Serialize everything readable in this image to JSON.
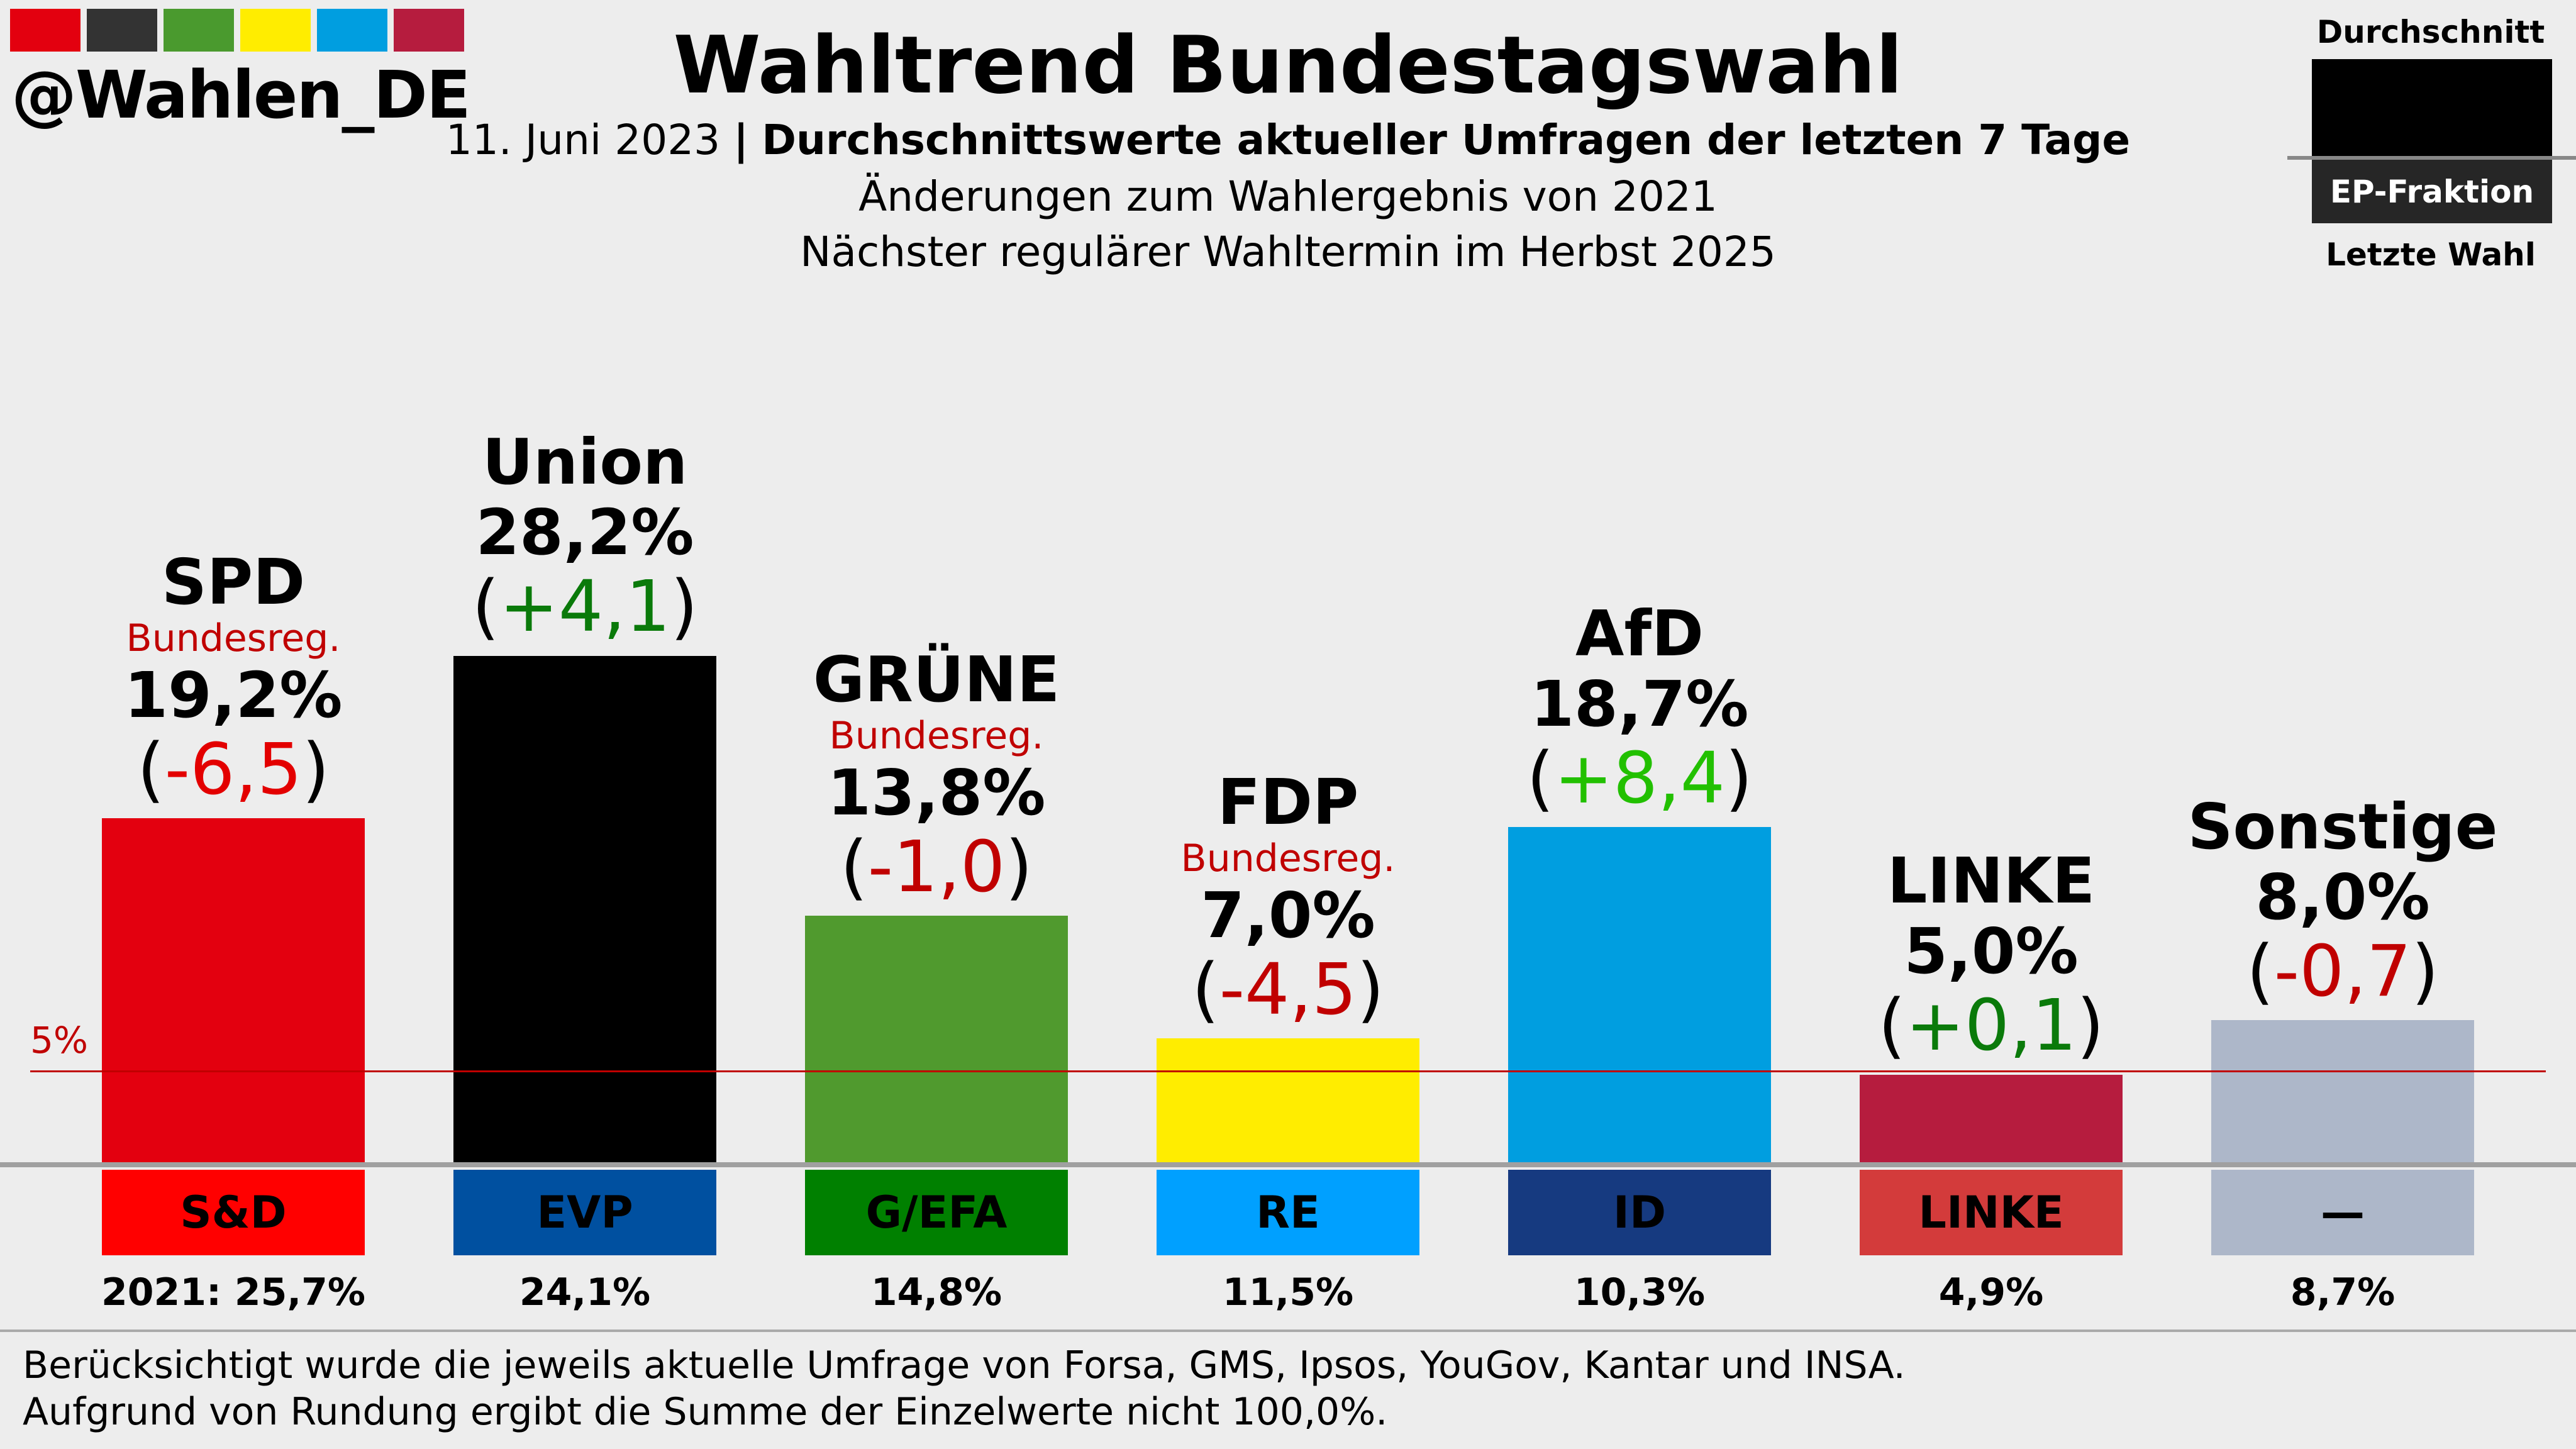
{
  "logo": {
    "handle": "@Wahlen_DE",
    "colors": [
      "#e3000f",
      "#333333",
      "#4a9a2e",
      "#ffed00",
      "#009ee0",
      "#b61c3e"
    ]
  },
  "header": {
    "title": "Wahltrend Bundestagswahl",
    "date": "11. Juni 2023",
    "separator": "|",
    "description": "Durchschnittswerte aktueller Umfragen der letzten 7 Tage",
    "line2": "Änderungen zum Wahlergebnis von 2021",
    "line3": "Nächster regulärer Wahltermin im Herbst 2025"
  },
  "legend": {
    "top": "Durchschnitt",
    "middle": "EP-Fraktion",
    "bottom": "Letzte Wahl"
  },
  "chart_data": {
    "type": "bar",
    "title": "Wahltrend Bundestagswahl",
    "unit": "%",
    "threshold": {
      "value": 5,
      "label": "5%"
    },
    "categories": [
      "SPD",
      "Union",
      "GRÜNE",
      "FDP",
      "AfD",
      "LINKE",
      "Sonstige"
    ],
    "values": [
      19.2,
      28.2,
      13.8,
      7.0,
      18.7,
      5.0,
      8.0
    ],
    "parties": [
      {
        "name": "SPD",
        "gov": "Bundesreg.",
        "pct": "19,2%",
        "value": 19.2,
        "change": "-6,5",
        "color": "#e3000f",
        "change_color": "#e30000",
        "group": "S&D",
        "group_color": "#ff0000",
        "group_text": "#000000",
        "last": "2021: 25,7%",
        "last_value": 25.7
      },
      {
        "name": "Union",
        "gov": null,
        "pct": "28,2%",
        "value": 28.2,
        "change": "+4,1",
        "color": "#000000",
        "change_color": "#0a7a0a",
        "group": "EVP",
        "group_color": "#0050a0",
        "group_text": "#000000",
        "last": "24,1%",
        "last_value": 24.1
      },
      {
        "name": "GRÜNE",
        "gov": "Bundesreg.",
        "pct": "13,8%",
        "value": 13.8,
        "change": "-1,0",
        "color": "#509a2e",
        "change_color": "#c00000",
        "group": "G/EFA",
        "group_color": "#008000",
        "group_text": "#000000",
        "last": "14,8%",
        "last_value": 14.8
      },
      {
        "name": "FDP",
        "gov": "Bundesreg.",
        "pct": "7,0%",
        "value": 7.0,
        "change": "-4,5",
        "color": "#ffed00",
        "change_color": "#c00000",
        "group": "RE",
        "group_color": "#00a0ff",
        "group_text": "#000000",
        "last": "11,5%",
        "last_value": 11.5
      },
      {
        "name": "AfD",
        "gov": null,
        "pct": "18,7%",
        "value": 18.7,
        "change": "+8,4",
        "color": "#009ee0",
        "change_color": "#22c000",
        "group": "ID",
        "group_color": "#163a80",
        "group_text": "#000000",
        "last": "10,3%",
        "last_value": 10.3
      },
      {
        "name": "LINKE",
        "gov": null,
        "pct": "5,0%",
        "value": 5.0,
        "change": "+0,1",
        "color": "#b61c3e",
        "change_color": "#0a7a0a",
        "group": "LINKE",
        "group_color": "#d33b3b",
        "group_text": "#000000",
        "last": "4,9%",
        "last_value": 4.9
      },
      {
        "name": "Sonstige",
        "gov": null,
        "pct": "8,0%",
        "value": 8.0,
        "change": "-0,7",
        "color": "#adb7c9",
        "change_color": "#c00000",
        "group": "—",
        "group_color": "#adb7c9",
        "group_text": "#000000",
        "last": "8,7%",
        "last_value": 8.7
      }
    ]
  },
  "footer": {
    "line1": "Berücksichtigt wurde die jeweils aktuelle Umfrage von Forsa, GMS, Ipsos, YouGov, Kantar und INSA.",
    "line2": "Aufgrund von Rundung ergibt die Summe der Einzelwerte nicht 100,0%."
  }
}
